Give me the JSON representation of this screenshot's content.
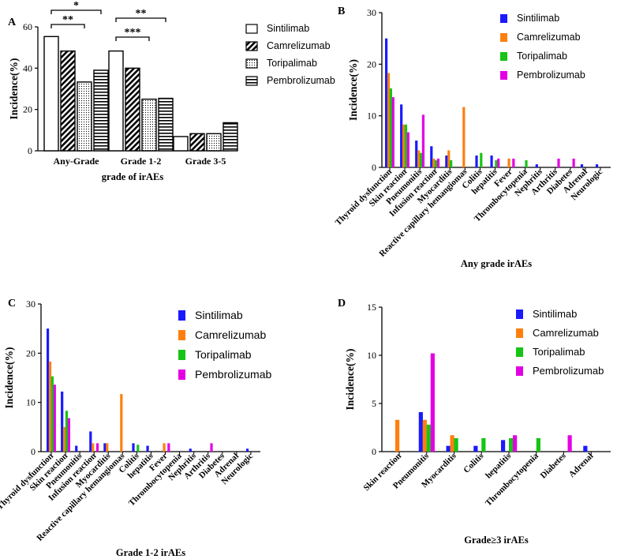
{
  "colors": {
    "Sintilimab": "#1a1aff",
    "Camrelizumab": "#ff7f0e",
    "Toripalimab": "#16c416",
    "Pembrolizumab": "#e400e4"
  },
  "chart_data": [
    {
      "panel": "A",
      "type": "bar",
      "title": "",
      "xlabel": "grade of irAEs",
      "ylabel": "Incidence(%)",
      "ylim": [
        0,
        60
      ],
      "yticks": [
        0,
        20,
        40,
        60
      ],
      "categories": [
        "Any-Grade",
        "Grade 1-2",
        "Grade 3-5"
      ],
      "series": [
        {
          "name": "Sintilimab",
          "pattern": "open",
          "values": [
            55.3,
            48.3,
            6.9
          ]
        },
        {
          "name": "Camrelizumab",
          "pattern": "diagonal",
          "values": [
            48.3,
            40.0,
            8.3
          ]
        },
        {
          "name": "Toripalimab",
          "pattern": "dotted",
          "values": [
            33.3,
            25.0,
            8.3
          ]
        },
        {
          "name": "Pembrolizumab",
          "pattern": "horizontal",
          "values": [
            39.0,
            25.4,
            13.6
          ]
        }
      ],
      "significance": [
        {
          "label": "*",
          "from": [
            0,
            0
          ],
          "to": [
            0,
            3
          ]
        },
        {
          "label": "**",
          "from": [
            0,
            0
          ],
          "to": [
            0,
            2
          ]
        },
        {
          "label": "**",
          "from": [
            1,
            0
          ],
          "to": [
            1,
            3
          ]
        },
        {
          "label": "***",
          "from": [
            1,
            0
          ],
          "to": [
            1,
            2
          ]
        }
      ]
    },
    {
      "panel": "B",
      "type": "bar",
      "title": "",
      "xlabel": "Any grade irAEs",
      "ylabel": "Incidence(%)",
      "ylim": [
        0,
        30
      ],
      "yticks": [
        0,
        10,
        20,
        30
      ],
      "categories": [
        "Thyroid dysfunction",
        "Skin reaction",
        "Pneumonitis",
        "Infusion reaction",
        "Myocarditis",
        "Reactive capillary hemangiomas",
        "Colitis",
        "hepatitis",
        "Fever",
        "Thrombocytopenia",
        "Nephritis",
        "Arthritis",
        "Diabetes",
        "Adrenal",
        "Neurologic"
      ],
      "series": [
        {
          "name": "Sintilimab",
          "values": [
            25.0,
            12.2,
            5.2,
            4.1,
            2.3,
            0,
            2.3,
            2.3,
            0,
            0,
            0.6,
            0,
            0,
            0.6,
            0.6
          ]
        },
        {
          "name": "Camrelizumab",
          "values": [
            18.3,
            8.3,
            3.3,
            1.7,
            3.3,
            11.7,
            0,
            0,
            1.7,
            0,
            0,
            0,
            0,
            0,
            0
          ]
        },
        {
          "name": "Toripalimab",
          "values": [
            15.3,
            8.3,
            2.8,
            1.4,
            1.4,
            0,
            2.8,
            1.4,
            0,
            1.4,
            0,
            0,
            0,
            0,
            0
          ]
        },
        {
          "name": "Pembrolizumab",
          "values": [
            13.6,
            6.8,
            10.2,
            1.7,
            0,
            0,
            0,
            1.7,
            1.7,
            0,
            0,
            1.7,
            1.7,
            0,
            0
          ]
        }
      ]
    },
    {
      "panel": "C",
      "type": "bar",
      "title": "",
      "xlabel": "Grade 1-2 irAEs",
      "ylabel": "Incidence(%)",
      "ylim": [
        0,
        30
      ],
      "yticks": [
        0,
        10,
        20,
        30
      ],
      "categories": [
        "Thyroid dysfunction",
        "Skin reaction",
        "Pneumonitis",
        "Infusion reaction",
        "Myocarditis",
        "Reactive capillary hemangiomas",
        "Colitis",
        "hepatitis",
        "Fever",
        "Thrombocytopenia",
        "Nephritis",
        "Arthritis",
        "Diabetes",
        "Adrenal",
        "Neurologic"
      ],
      "series": [
        {
          "name": "Sintilimab",
          "values": [
            25.0,
            12.2,
            1.2,
            4.1,
            1.7,
            0,
            1.7,
            1.2,
            0,
            0,
            0.6,
            0,
            0,
            0,
            0.6
          ]
        },
        {
          "name": "Camrelizumab",
          "values": [
            18.3,
            5.0,
            0,
            1.7,
            1.7,
            11.7,
            0,
            0,
            1.7,
            0,
            0,
            0,
            0,
            0,
            0
          ]
        },
        {
          "name": "Toripalimab",
          "values": [
            15.3,
            8.3,
            0,
            0,
            0,
            0,
            1.4,
            0,
            0,
            0,
            0,
            0,
            0,
            0,
            0
          ]
        },
        {
          "name": "Pembrolizumab",
          "values": [
            13.6,
            6.8,
            0,
            1.7,
            0,
            0,
            0,
            0,
            1.7,
            0,
            0,
            1.7,
            0,
            0,
            0
          ]
        }
      ]
    },
    {
      "panel": "D",
      "type": "bar",
      "title": "",
      "xlabel": "Grade≥3 irAEs",
      "ylabel": "Incidence(%)",
      "ylim": [
        0,
        15
      ],
      "yticks": [
        0,
        5,
        10,
        15
      ],
      "categories": [
        "Skin reaction",
        "Pneumonitis",
        "Myocarditis",
        "Colitis",
        "hepatitis",
        "Thrombocytopenia",
        "Diabetes",
        "Adrenal"
      ],
      "series": [
        {
          "name": "Sintilimab",
          "values": [
            0,
            4.1,
            0.6,
            0.6,
            1.2,
            0,
            0,
            0.6
          ]
        },
        {
          "name": "Camrelizumab",
          "values": [
            3.3,
            3.3,
            1.7,
            0,
            0,
            0,
            0,
            0
          ]
        },
        {
          "name": "Toripalimab",
          "values": [
            0,
            2.8,
            1.4,
            1.4,
            1.4,
            1.4,
            0,
            0
          ]
        },
        {
          "name": "Pembrolizumab",
          "values": [
            0,
            10.2,
            0,
            0,
            1.7,
            0,
            1.7,
            0
          ]
        }
      ]
    }
  ]
}
